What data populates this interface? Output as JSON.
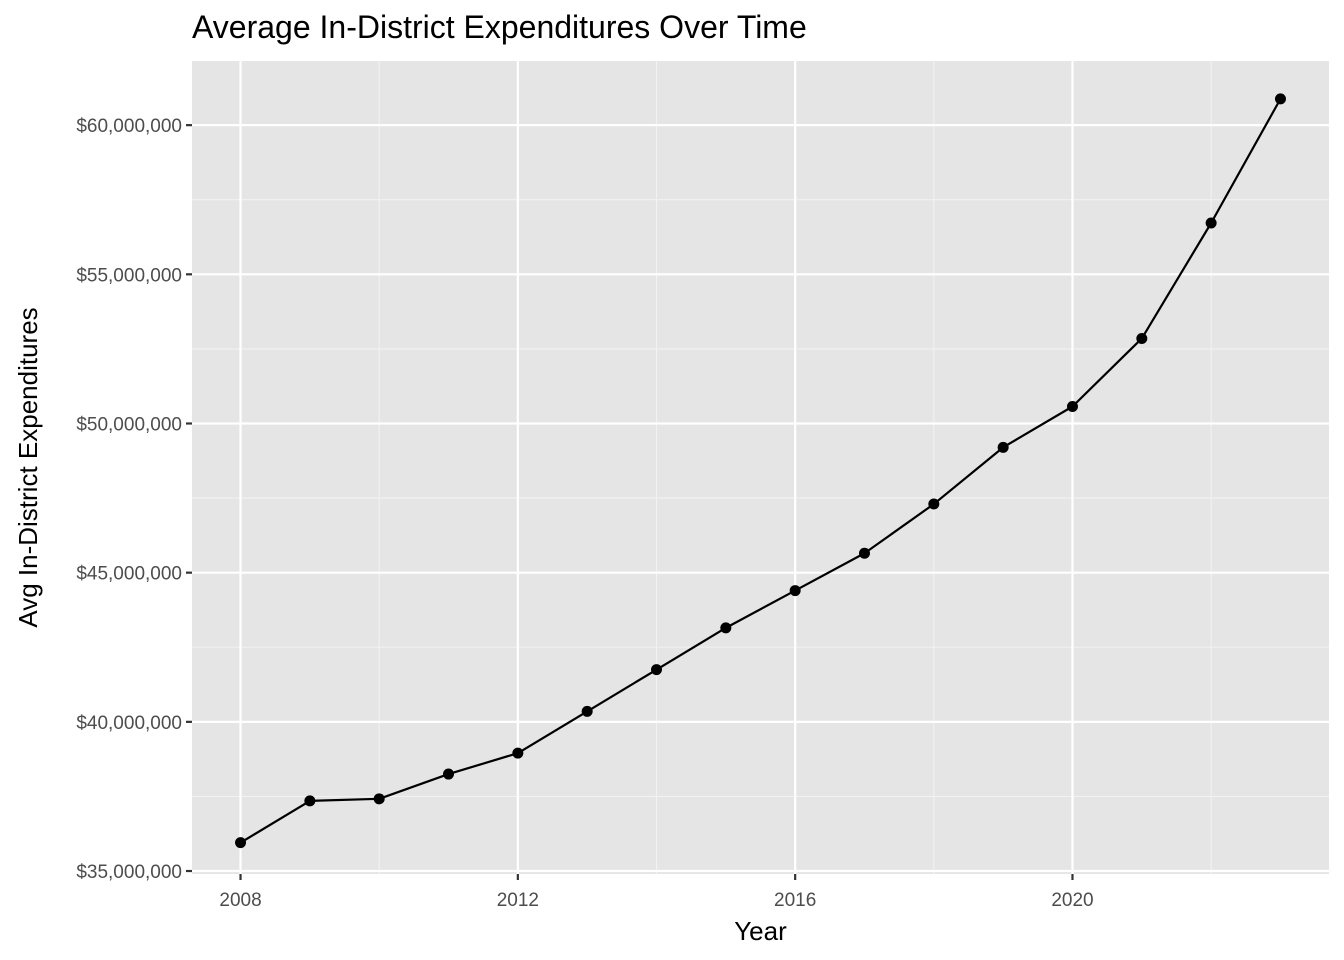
{
  "chart_data": {
    "type": "line",
    "title": "Average In-District Expenditures Over Time",
    "xlabel": "Year",
    "ylabel": "Avg In-District Expenditures",
    "xlim": [
      2007.3,
      2023.7
    ],
    "ylim": [
      34900000,
      62150000
    ],
    "x_ticks": [
      2008,
      2012,
      2016,
      2020
    ],
    "x_tick_labels": [
      "2008",
      "2012",
      "2016",
      "2020"
    ],
    "x_minor_ticks": [
      2010,
      2014,
      2018,
      2022
    ],
    "y_ticks": [
      35000000,
      40000000,
      45000000,
      50000000,
      55000000,
      60000000
    ],
    "y_tick_labels": [
      "$35,000,000",
      "$40,000,000",
      "$45,000,000",
      "$50,000,000",
      "$55,000,000",
      "$60,000,000"
    ],
    "y_minor_ticks": [
      37500000,
      42500000,
      47500000,
      52500000,
      57500000
    ],
    "grid": true,
    "series": [
      {
        "x": [
          2008,
          2009,
          2010,
          2011,
          2012,
          2013,
          2014,
          2015,
          2016,
          2017,
          2018,
          2019,
          2020,
          2021,
          2022,
          2023
        ],
        "values": [
          35950000,
          37350000,
          37420000,
          38250000,
          38950000,
          40350000,
          41750000,
          43150000,
          44400000,
          45650000,
          47300000,
          49200000,
          50570000,
          52850000,
          56720000,
          60880000
        ]
      }
    ],
    "colors": {
      "panel_background": "#e5e5e5",
      "grid_major": "#ffffff",
      "grid_minor": "#f2f2f2",
      "line": "#000000",
      "point": "#000000",
      "tick_label": "#4d4d4d",
      "text": "#000000"
    }
  }
}
